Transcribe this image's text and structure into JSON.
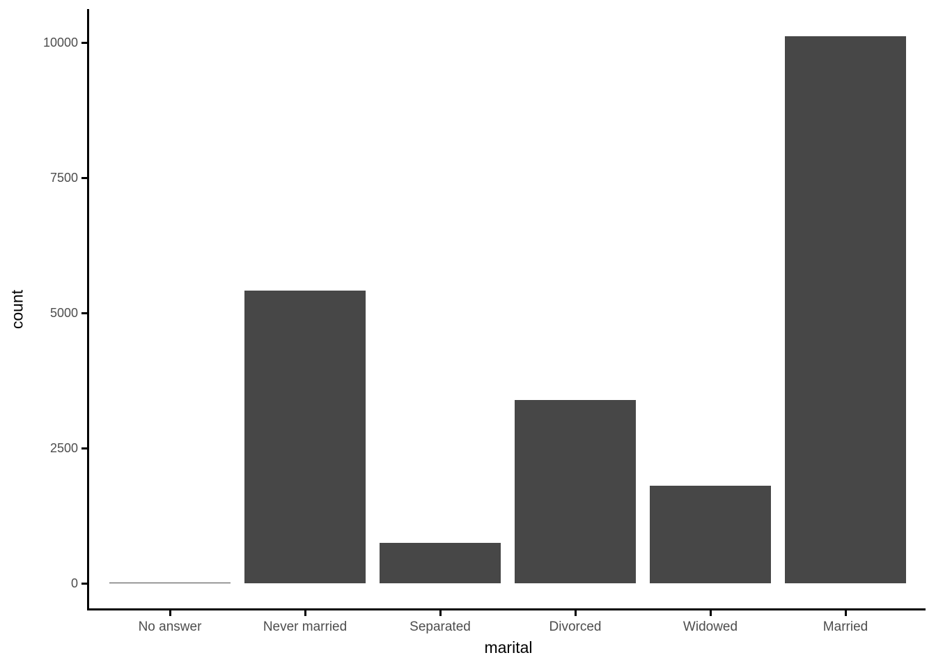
{
  "chart_data": {
    "type": "bar",
    "title": "",
    "xlabel": "marital",
    "ylabel": "count",
    "categories": [
      "No answer",
      "Never married",
      "Separated",
      "Divorced",
      "Widowed",
      "Married"
    ],
    "values": [
      17,
      5416,
      743,
      3383,
      1807,
      10117
    ],
    "y_ticks": [
      0,
      2500,
      5000,
      7500,
      10000
    ],
    "ylim": [
      0,
      10117
    ],
    "grid": false,
    "legend": false,
    "bar_color": "#474747",
    "axis_color": "#000000",
    "tick_label_color": "#4D4D4D",
    "background_color": "#FFFFFF"
  }
}
